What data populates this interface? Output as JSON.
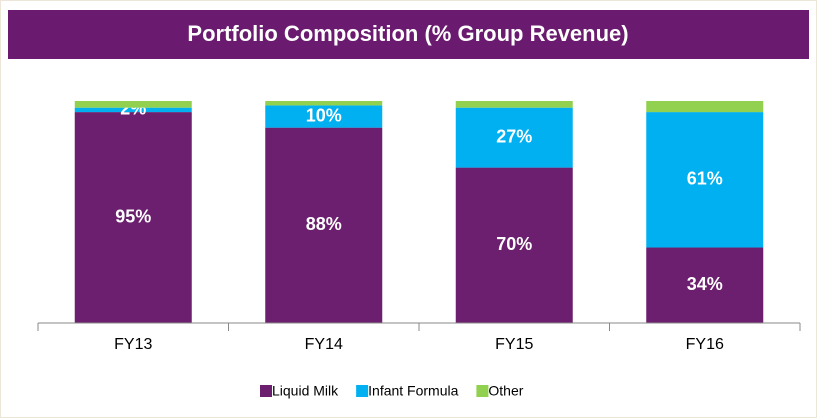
{
  "chart_data": {
    "type": "stacked_bar",
    "title": "Portfolio Composition (% Group Revenue)",
    "categories": [
      "FY13",
      "FY14",
      "FY15",
      "FY16"
    ],
    "series": [
      {
        "name": "Liquid Milk",
        "color": "#6b1f6e",
        "values": [
          95,
          88,
          70,
          34
        ],
        "value_labels": [
          "95%",
          "88%",
          "70%",
          "34%"
        ]
      },
      {
        "name": "Infant Formula",
        "color": "#00b0f0",
        "values": [
          2,
          10,
          27,
          61
        ],
        "value_labels": [
          "2%",
          "10%",
          "27%",
          "61%"
        ]
      },
      {
        "name": "Other",
        "color": "#92d050",
        "values": [
          3,
          2,
          3,
          5
        ]
      }
    ],
    "ylim": [
      0,
      100
    ],
    "legend": "bottom"
  }
}
